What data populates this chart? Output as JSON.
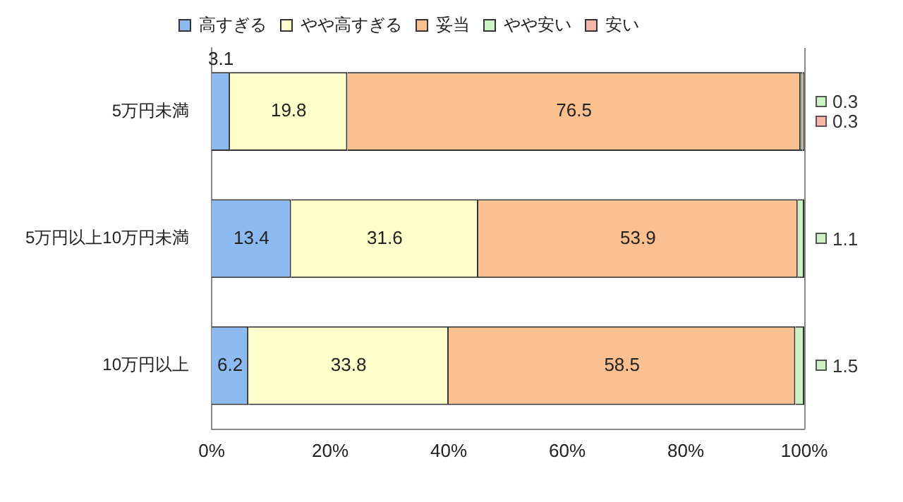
{
  "chart_data": {
    "type": "bar",
    "orientation": "horizontal",
    "stacked": true,
    "categories": [
      "5万円未満",
      "5万円以上10万円未満",
      "10万円以上"
    ],
    "series": [
      {
        "name": "高すぎる",
        "color": "#8dbbf0",
        "values": [
          3.1,
          13.4,
          6.2
        ],
        "value_labels": [
          "3.1",
          "13.4",
          "6.2"
        ]
      },
      {
        "name": "やや高すぎる",
        "color": "#ffffcc",
        "values": [
          19.8,
          31.6,
          33.8
        ],
        "value_labels": [
          "19.8",
          "31.6",
          "33.8"
        ]
      },
      {
        "name": "妥当",
        "color": "#fbc08f",
        "values": [
          76.5,
          53.9,
          58.5
        ],
        "value_labels": [
          "76.5",
          "53.9",
          "58.5"
        ]
      },
      {
        "name": "やや安い",
        "color": "#cdf2c6",
        "values": [
          0.3,
          1.1,
          1.5
        ],
        "value_labels": [
          "0.3",
          "1.1",
          "1.5"
        ]
      },
      {
        "name": "安い",
        "color": "#f6b7a8",
        "values": [
          0.3,
          0,
          0
        ],
        "value_labels": [
          "0.3",
          null,
          null
        ]
      }
    ],
    "xlim": [
      0,
      100
    ],
    "xticks": [
      {
        "value": 0,
        "label": "0%"
      },
      {
        "value": 20,
        "label": "20%"
      },
      {
        "value": 40,
        "label": "40%"
      },
      {
        "value": 60,
        "label": "60%"
      },
      {
        "value": 80,
        "label": "80%"
      },
      {
        "value": 100,
        "label": "100%"
      }
    ],
    "grid": false,
    "legend": "top"
  }
}
